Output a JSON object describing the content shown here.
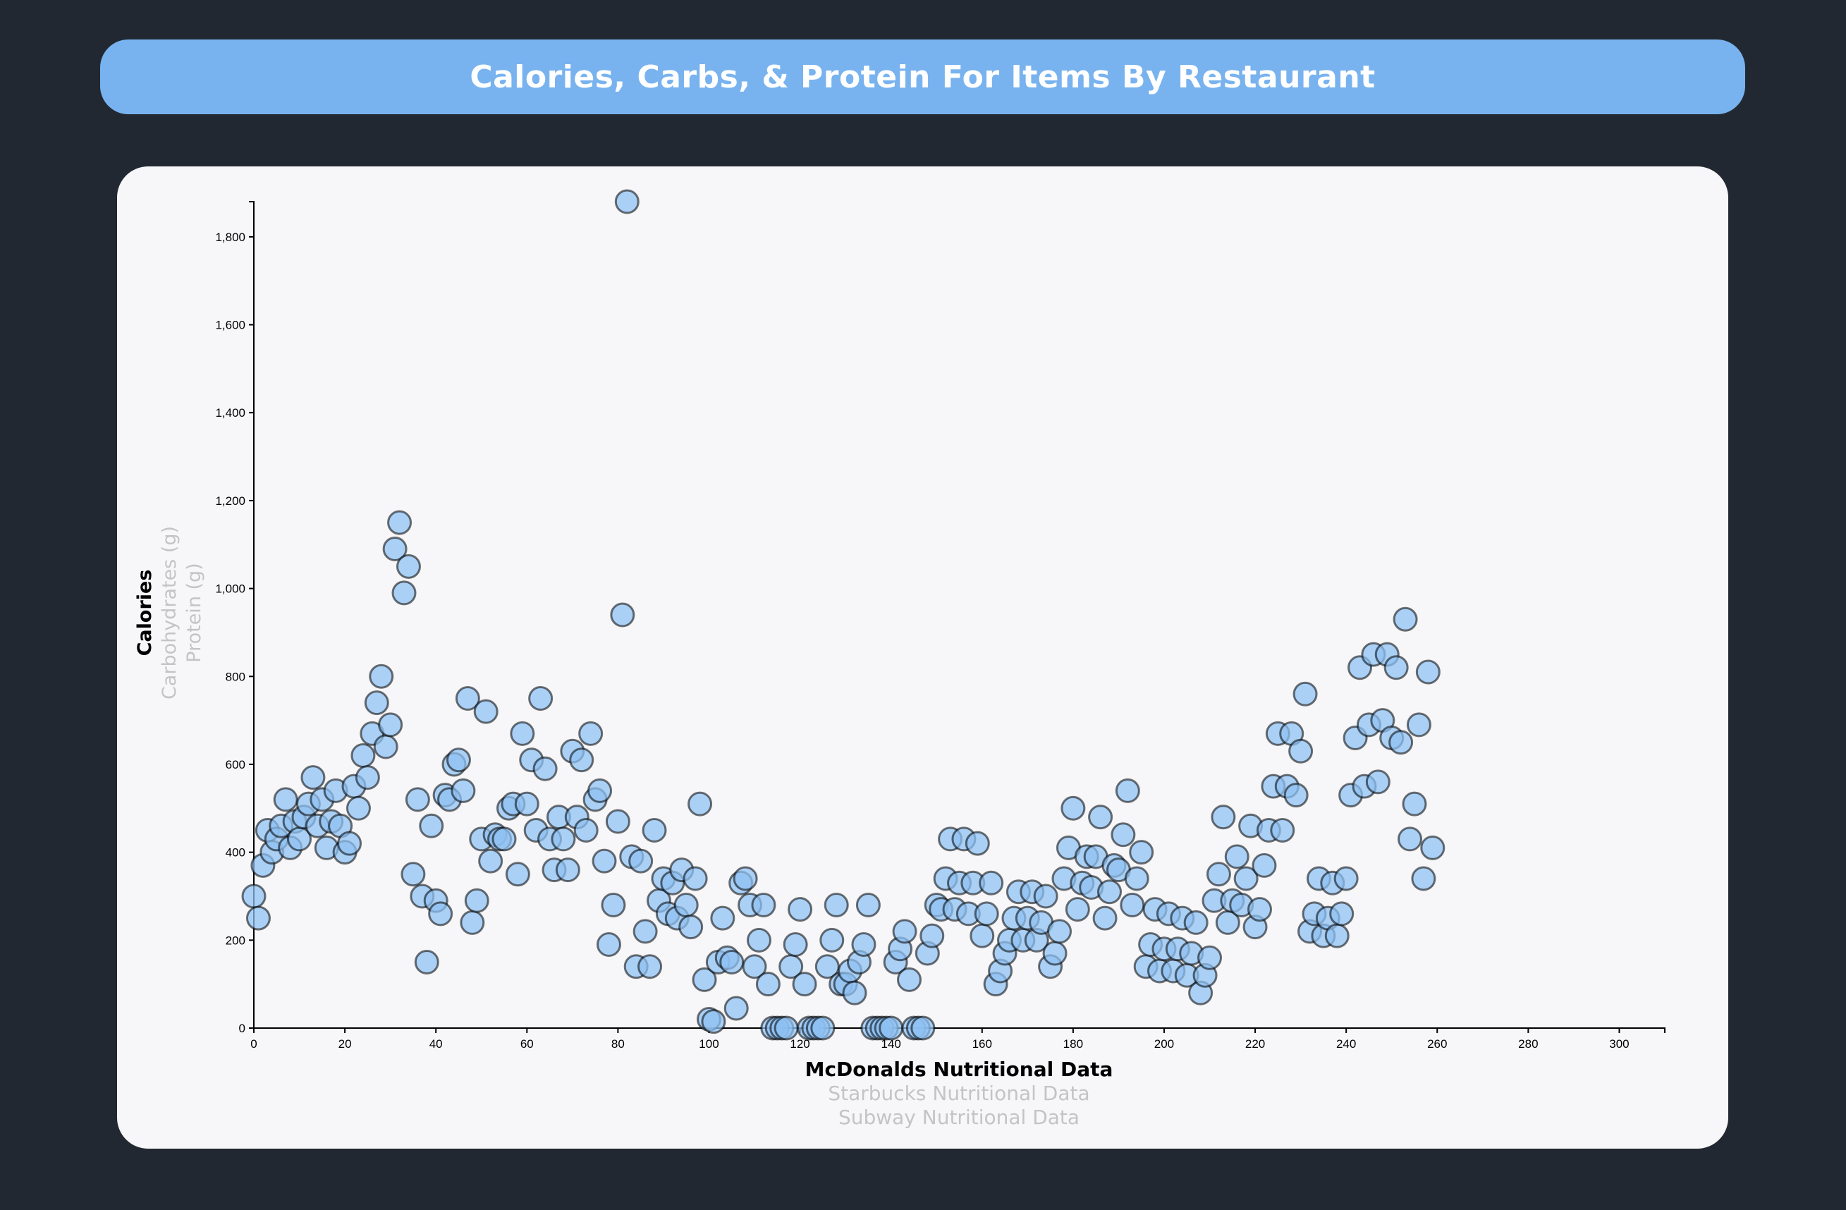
{
  "header": {
    "title": "Calories, Carbs, & Protein For Items By Restaurant"
  },
  "axis_options": {
    "y": [
      {
        "label": "Calories",
        "active": true
      },
      {
        "label": "Carbohydrates (g)",
        "active": false
      },
      {
        "label": "Protein (g)",
        "active": false
      }
    ],
    "x": [
      {
        "label": "McDonalds Nutritional Data",
        "active": true
      },
      {
        "label": "Starbucks Nutritional Data",
        "active": false
      },
      {
        "label": "Subway Nutritional Data",
        "active": false
      }
    ]
  },
  "colors": {
    "background": "#222831",
    "title_bar": "#78b3ef",
    "card": "#f7f7f9",
    "dot_fill": "#8ec0f2",
    "inactive_label": "#c4c4c4"
  },
  "chart_data": {
    "type": "scatter",
    "title": "Calories, Carbs, & Protein For Items By Restaurant",
    "xlabel": "McDonalds Nutritional Data",
    "ylabel": "Calories",
    "xlim": [
      0,
      310
    ],
    "ylim": [
      0,
      1880
    ],
    "x_ticks": [
      0,
      20,
      40,
      60,
      80,
      100,
      120,
      140,
      160,
      180,
      200,
      220,
      240,
      260,
      280,
      300
    ],
    "y_ticks": [
      0,
      200,
      400,
      600,
      800,
      1000,
      1200,
      1400,
      1600,
      1800
    ],
    "y_tick_labels": [
      "0",
      "200",
      "400",
      "600",
      "800",
      "1,000",
      "1,200",
      "1,400",
      "1,600",
      "1,800"
    ],
    "grid": false,
    "legend": "none",
    "points": [
      [
        0,
        300
      ],
      [
        1,
        250
      ],
      [
        2,
        370
      ],
      [
        3,
        450
      ],
      [
        4,
        400
      ],
      [
        5,
        430
      ],
      [
        6,
        460
      ],
      [
        7,
        520
      ],
      [
        8,
        410
      ],
      [
        9,
        470
      ],
      [
        10,
        430
      ],
      [
        11,
        480
      ],
      [
        12,
        510
      ],
      [
        13,
        570
      ],
      [
        14,
        460
      ],
      [
        15,
        520
      ],
      [
        16,
        410
      ],
      [
        17,
        470
      ],
      [
        18,
        540
      ],
      [
        19,
        460
      ],
      [
        20,
        400
      ],
      [
        21,
        420
      ],
      [
        22,
        550
      ],
      [
        23,
        500
      ],
      [
        24,
        620
      ],
      [
        25,
        570
      ],
      [
        26,
        670
      ],
      [
        27,
        740
      ],
      [
        28,
        800
      ],
      [
        29,
        640
      ],
      [
        30,
        690
      ],
      [
        31,
        1090
      ],
      [
        32,
        1150
      ],
      [
        33,
        990
      ],
      [
        34,
        1050
      ],
      [
        35,
        350
      ],
      [
        36,
        520
      ],
      [
        37,
        300
      ],
      [
        38,
        150
      ],
      [
        39,
        460
      ],
      [
        40,
        290
      ],
      [
        41,
        260
      ],
      [
        42,
        530
      ],
      [
        43,
        520
      ],
      [
        44,
        600
      ],
      [
        45,
        610
      ],
      [
        46,
        540
      ],
      [
        47,
        750
      ],
      [
        48,
        240
      ],
      [
        49,
        290
      ],
      [
        50,
        430
      ],
      [
        51,
        720
      ],
      [
        52,
        380
      ],
      [
        53,
        440
      ],
      [
        54,
        430
      ],
      [
        55,
        430
      ],
      [
        56,
        500
      ],
      [
        57,
        510
      ],
      [
        58,
        350
      ],
      [
        59,
        670
      ],
      [
        60,
        510
      ],
      [
        61,
        610
      ],
      [
        62,
        450
      ],
      [
        63,
        750
      ],
      [
        64,
        590
      ],
      [
        65,
        430
      ],
      [
        66,
        360
      ],
      [
        67,
        480
      ],
      [
        68,
        430
      ],
      [
        69,
        360
      ],
      [
        70,
        630
      ],
      [
        71,
        480
      ],
      [
        72,
        610
      ],
      [
        73,
        450
      ],
      [
        74,
        670
      ],
      [
        75,
        520
      ],
      [
        76,
        540
      ],
      [
        77,
        380
      ],
      [
        78,
        190
      ],
      [
        79,
        280
      ],
      [
        80,
        470
      ],
      [
        81,
        940
      ],
      [
        82,
        1880
      ],
      [
        83,
        390
      ],
      [
        84,
        140
      ],
      [
        85,
        380
      ],
      [
        86,
        220
      ],
      [
        87,
        140
      ],
      [
        88,
        450
      ],
      [
        89,
        290
      ],
      [
        90,
        340
      ],
      [
        91,
        260
      ],
      [
        92,
        330
      ],
      [
        93,
        250
      ],
      [
        94,
        360
      ],
      [
        95,
        280
      ],
      [
        96,
        230
      ],
      [
        97,
        340
      ],
      [
        98,
        510
      ],
      [
        99,
        110
      ],
      [
        100,
        20
      ],
      [
        101,
        15
      ],
      [
        102,
        150
      ],
      [
        103,
        250
      ],
      [
        104,
        160
      ],
      [
        105,
        150
      ],
      [
        106,
        45
      ],
      [
        107,
        330
      ],
      [
        108,
        340
      ],
      [
        109,
        280
      ],
      [
        110,
        140
      ],
      [
        111,
        200
      ],
      [
        112,
        280
      ],
      [
        113,
        100
      ],
      [
        114,
        0
      ],
      [
        115,
        0
      ],
      [
        116,
        0
      ],
      [
        117,
        0
      ],
      [
        118,
        140
      ],
      [
        119,
        190
      ],
      [
        120,
        270
      ],
      [
        121,
        100
      ],
      [
        122,
        0
      ],
      [
        123,
        0
      ],
      [
        124,
        0
      ],
      [
        125,
        0
      ],
      [
        126,
        140
      ],
      [
        127,
        200
      ],
      [
        128,
        280
      ],
      [
        129,
        100
      ],
      [
        130,
        100
      ],
      [
        131,
        130
      ],
      [
        132,
        80
      ],
      [
        133,
        150
      ],
      [
        134,
        190
      ],
      [
        135,
        280
      ],
      [
        136,
        0
      ],
      [
        137,
        0
      ],
      [
        138,
        0
      ],
      [
        139,
        0
      ],
      [
        140,
        0
      ],
      [
        141,
        150
      ],
      [
        142,
        180
      ],
      [
        143,
        220
      ],
      [
        144,
        110
      ],
      [
        145,
        0
      ],
      [
        146,
        0
      ],
      [
        147,
        0
      ],
      [
        148,
        170
      ],
      [
        149,
        210
      ],
      [
        150,
        280
      ],
      [
        151,
        270
      ],
      [
        152,
        340
      ],
      [
        153,
        430
      ],
      [
        154,
        270
      ],
      [
        155,
        330
      ],
      [
        156,
        430
      ],
      [
        157,
        260
      ],
      [
        158,
        330
      ],
      [
        159,
        420
      ],
      [
        160,
        210
      ],
      [
        161,
        260
      ],
      [
        162,
        330
      ],
      [
        163,
        100
      ],
      [
        164,
        130
      ],
      [
        165,
        170
      ],
      [
        166,
        200
      ],
      [
        167,
        250
      ],
      [
        168,
        310
      ],
      [
        169,
        200
      ],
      [
        170,
        250
      ],
      [
        171,
        310
      ],
      [
        172,
        200
      ],
      [
        173,
        240
      ],
      [
        174,
        300
      ],
      [
        175,
        140
      ],
      [
        176,
        170
      ],
      [
        177,
        220
      ],
      [
        178,
        340
      ],
      [
        179,
        410
      ],
      [
        180,
        500
      ],
      [
        181,
        270
      ],
      [
        182,
        330
      ],
      [
        183,
        390
      ],
      [
        184,
        320
      ],
      [
        185,
        390
      ],
      [
        186,
        480
      ],
      [
        187,
        250
      ],
      [
        188,
        310
      ],
      [
        189,
        370
      ],
      [
        190,
        360
      ],
      [
        191,
        440
      ],
      [
        192,
        540
      ],
      [
        193,
        280
      ],
      [
        194,
        340
      ],
      [
        195,
        400
      ],
      [
        196,
        140
      ],
      [
        197,
        190
      ],
      [
        198,
        270
      ],
      [
        199,
        130
      ],
      [
        200,
        180
      ],
      [
        201,
        260
      ],
      [
        202,
        130
      ],
      [
        203,
        180
      ],
      [
        204,
        250
      ],
      [
        205,
        120
      ],
      [
        206,
        170
      ],
      [
        207,
        240
      ],
      [
        208,
        80
      ],
      [
        209,
        120
      ],
      [
        210,
        160
      ],
      [
        211,
        290
      ],
      [
        212,
        350
      ],
      [
        213,
        480
      ],
      [
        214,
        240
      ],
      [
        215,
        290
      ],
      [
        216,
        390
      ],
      [
        217,
        280
      ],
      [
        218,
        340
      ],
      [
        219,
        460
      ],
      [
        220,
        230
      ],
      [
        221,
        270
      ],
      [
        222,
        370
      ],
      [
        223,
        450
      ],
      [
        224,
        550
      ],
      [
        225,
        670
      ],
      [
        226,
        450
      ],
      [
        227,
        550
      ],
      [
        228,
        670
      ],
      [
        229,
        530
      ],
      [
        230,
        630
      ],
      [
        231,
        760
      ],
      [
        232,
        220
      ],
      [
        233,
        260
      ],
      [
        234,
        340
      ],
      [
        235,
        210
      ],
      [
        236,
        250
      ],
      [
        237,
        330
      ],
      [
        238,
        210
      ],
      [
        239,
        260
      ],
      [
        240,
        340
      ],
      [
        241,
        530
      ],
      [
        242,
        660
      ],
      [
        243,
        820
      ],
      [
        244,
        550
      ],
      [
        245,
        690
      ],
      [
        246,
        850
      ],
      [
        247,
        560
      ],
      [
        248,
        700
      ],
      [
        249,
        850
      ],
      [
        250,
        660
      ],
      [
        251,
        820
      ],
      [
        252,
        650
      ],
      [
        253,
        930
      ],
      [
        254,
        430
      ],
      [
        255,
        510
      ],
      [
        256,
        690
      ],
      [
        257,
        340
      ],
      [
        258,
        810
      ],
      [
        259,
        410
      ]
    ]
  }
}
